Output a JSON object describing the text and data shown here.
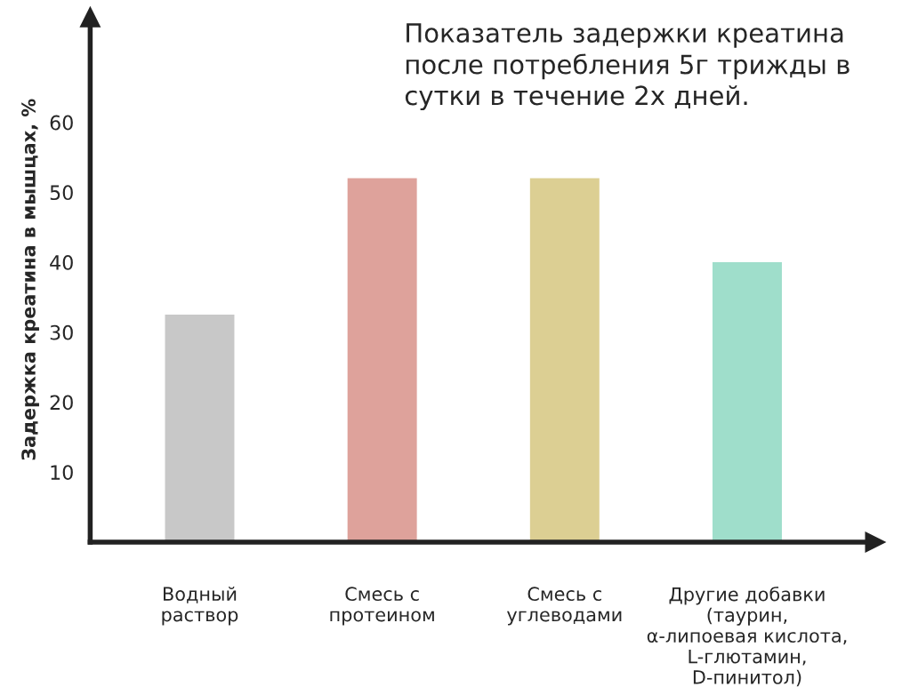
{
  "chart_data": {
    "type": "bar",
    "title": "Показатель задержки креатина\nпосле потребления 5г трижды в\nсутки в течение 2х дней.",
    "ylabel": "Задержка креатина в мышцах, %",
    "categories": [
      "Водный\nраствор",
      "Смесь с\nпротеином",
      "Смесь с\nуглеводами",
      "Другие добавки\n(таурин,\nα-липоевая кислота,\nL-глютамин,\nD-пинитол)"
    ],
    "values": [
      32.5,
      52,
      52,
      40
    ],
    "colors": [
      "#c8c8c8",
      "#dea29b",
      "#dccf93",
      "#9fdecb"
    ],
    "ylim": [
      0,
      75
    ],
    "yticks": [
      10,
      20,
      30,
      40,
      50,
      60
    ],
    "grid": false
  }
}
